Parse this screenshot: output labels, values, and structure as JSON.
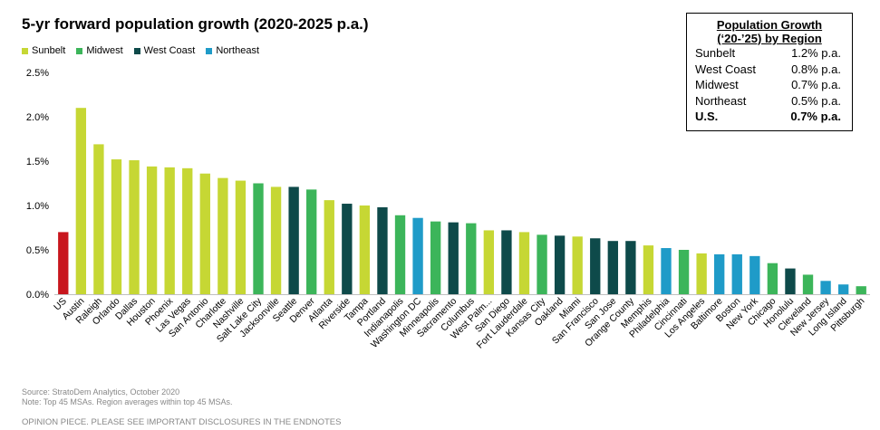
{
  "chart_data": {
    "type": "bar",
    "title": "5-yr forward population growth (2020-2025 p.a.)",
    "ylim": [
      0,
      2.5
    ],
    "yticks": [
      "0.0%",
      "0.5%",
      "1.0%",
      "1.5%",
      "2.0%",
      "2.5%"
    ],
    "legend": [
      {
        "name": "Sunbelt",
        "color": "#c6d734"
      },
      {
        "name": "Midwest",
        "color": "#3cb55a"
      },
      {
        "name": "West Coast",
        "color": "#0e4a4a"
      },
      {
        "name": "Northeast",
        "color": "#1f9bc8"
      }
    ],
    "bars": [
      {
        "label": "US",
        "value": 0.7,
        "region": "US"
      },
      {
        "label": "Austin",
        "value": 2.1,
        "region": "Sunbelt"
      },
      {
        "label": "Raleigh",
        "value": 1.69,
        "region": "Sunbelt"
      },
      {
        "label": "Orlando",
        "value": 1.52,
        "region": "Sunbelt"
      },
      {
        "label": "Dallas",
        "value": 1.51,
        "region": "Sunbelt"
      },
      {
        "label": "Houston",
        "value": 1.44,
        "region": "Sunbelt"
      },
      {
        "label": "Phoenix",
        "value": 1.43,
        "region": "Sunbelt"
      },
      {
        "label": "Las Vegas",
        "value": 1.42,
        "region": "Sunbelt"
      },
      {
        "label": "San Antonio",
        "value": 1.36,
        "region": "Sunbelt"
      },
      {
        "label": "Charlotte",
        "value": 1.31,
        "region": "Sunbelt"
      },
      {
        "label": "Nashville",
        "value": 1.28,
        "region": "Sunbelt"
      },
      {
        "label": "Salt Lake City",
        "value": 1.25,
        "region": "Midwest"
      },
      {
        "label": "Jacksonville",
        "value": 1.21,
        "region": "Sunbelt"
      },
      {
        "label": "Seattle",
        "value": 1.21,
        "region": "West Coast"
      },
      {
        "label": "Denver",
        "value": 1.18,
        "region": "Midwest"
      },
      {
        "label": "Atlanta",
        "value": 1.06,
        "region": "Sunbelt"
      },
      {
        "label": "Riverside",
        "value": 1.02,
        "region": "West Coast"
      },
      {
        "label": "Tampa",
        "value": 1.0,
        "region": "Sunbelt"
      },
      {
        "label": "Portland",
        "value": 0.98,
        "region": "West Coast"
      },
      {
        "label": "Indianapolis",
        "value": 0.89,
        "region": "Midwest"
      },
      {
        "label": "Washington DC",
        "value": 0.86,
        "region": "Northeast"
      },
      {
        "label": "Minneapolis",
        "value": 0.82,
        "region": "Midwest"
      },
      {
        "label": "Sacramento",
        "value": 0.81,
        "region": "West Coast"
      },
      {
        "label": "Columbus",
        "value": 0.8,
        "region": "Midwest"
      },
      {
        "label": "West Palm...",
        "value": 0.72,
        "region": "Sunbelt"
      },
      {
        "label": "San Diego",
        "value": 0.72,
        "region": "West Coast"
      },
      {
        "label": "Fort Lauderdale",
        "value": 0.7,
        "region": "Sunbelt"
      },
      {
        "label": "Kansas City",
        "value": 0.67,
        "region": "Midwest"
      },
      {
        "label": "Oakland",
        "value": 0.66,
        "region": "West Coast"
      },
      {
        "label": "Miami",
        "value": 0.65,
        "region": "Sunbelt"
      },
      {
        "label": "San Francisco",
        "value": 0.63,
        "region": "West Coast"
      },
      {
        "label": "San Jose",
        "value": 0.6,
        "region": "West Coast"
      },
      {
        "label": "Orange County",
        "value": 0.6,
        "region": "West Coast"
      },
      {
        "label": "Memphis",
        "value": 0.55,
        "region": "Sunbelt"
      },
      {
        "label": "Philadelphia",
        "value": 0.52,
        "region": "Northeast"
      },
      {
        "label": "Cincinnati",
        "value": 0.5,
        "region": "Midwest"
      },
      {
        "label": "Los Angeles",
        "value": 0.46,
        "region": "Sunbelt"
      },
      {
        "label": "Baltimore",
        "value": 0.45,
        "region": "Northeast"
      },
      {
        "label": "Boston",
        "value": 0.45,
        "region": "Northeast"
      },
      {
        "label": "New York",
        "value": 0.43,
        "region": "Northeast"
      },
      {
        "label": "Chicago",
        "value": 0.35,
        "region": "Midwest"
      },
      {
        "label": "Honolulu",
        "value": 0.29,
        "region": "West Coast"
      },
      {
        "label": "Cleveland",
        "value": 0.22,
        "region": "Midwest"
      },
      {
        "label": "New Jersey",
        "value": 0.15,
        "region": "Northeast"
      },
      {
        "label": "Long Island",
        "value": 0.11,
        "region": "Northeast"
      },
      {
        "label": "Pittsburgh",
        "value": 0.09,
        "region": "Midwest"
      }
    ],
    "region_colors": {
      "US": "#c8161d",
      "Sunbelt": "#c6d734",
      "Midwest": "#3cb55a",
      "West Coast": "#0e4a4a",
      "Northeast": "#1f9bc8"
    }
  },
  "region_table": {
    "title_line1": "Population  Growth",
    "title_line2": "(‘20-’25) by Region",
    "rows": [
      {
        "region": "Sunbelt",
        "value": "1.2% p.a.",
        "bold": false
      },
      {
        "region": "West Coast",
        "value": "0.8% p.a.",
        "bold": false
      },
      {
        "region": "Midwest",
        "value": "0.7% p.a.",
        "bold": false
      },
      {
        "region": "Northeast",
        "value": "0.5% p.a.",
        "bold": false
      },
      {
        "region": "U.S.",
        "value": "0.7% p.a.",
        "bold": true
      }
    ]
  },
  "footer": {
    "source": "Source: StratoDem Analytics, October 2020",
    "note": "Note: Top 45 MSAs. Region averages within top 45 MSAs.",
    "disclaimer": "OPINION PIECE. PLEASE SEE IMPORTANT DISCLOSURES IN THE ENDNOTES"
  }
}
